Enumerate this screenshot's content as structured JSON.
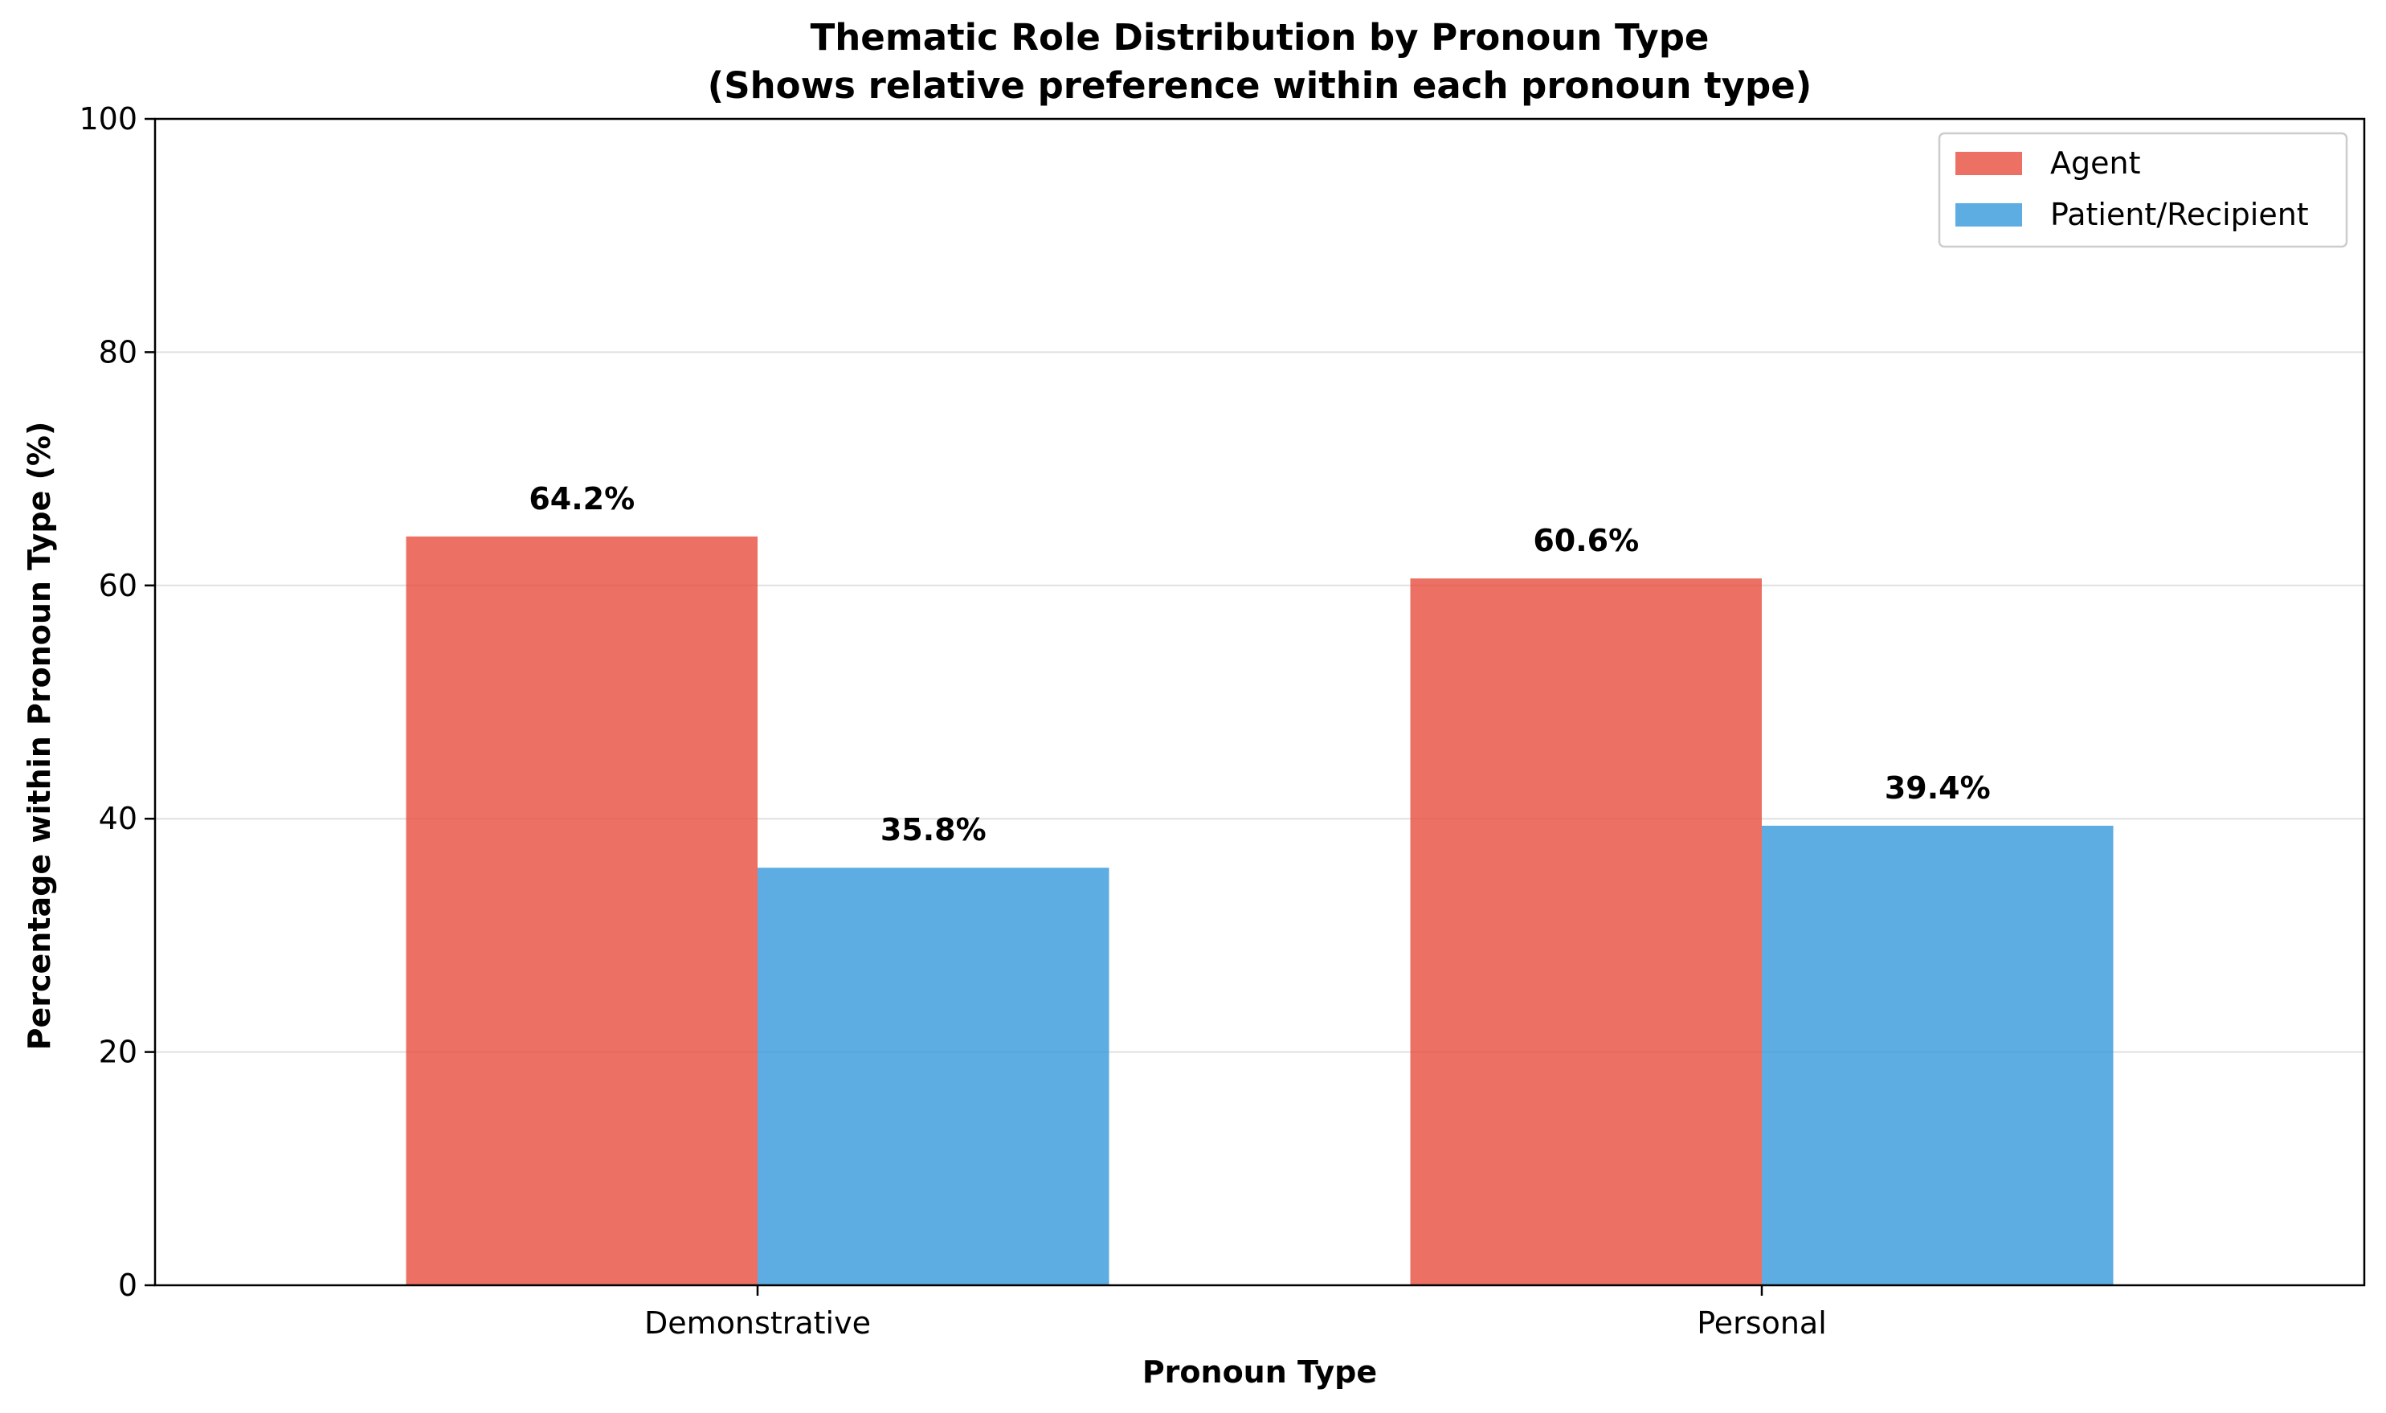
{
  "chart_data": {
    "type": "bar",
    "title": "Thematic Role Distribution by Pronoun Type",
    "subtitle": "(Shows relative preference within each pronoun type)",
    "xlabel": "Pronoun Type",
    "ylabel": "Percentage within Pronoun Type (%)",
    "categories": [
      "Demonstrative",
      "Personal"
    ],
    "series": [
      {
        "name": "Agent",
        "values": [
          64.2,
          60.6
        ],
        "labels": [
          "64.2%",
          "60.6%"
        ],
        "color": "#E74C3C"
      },
      {
        "name": "Patient/Recipient",
        "values": [
          35.8,
          39.4
        ],
        "labels": [
          "35.8%",
          "39.4%"
        ],
        "color": "#3498DB"
      }
    ],
    "ylim": [
      0,
      100
    ],
    "yticks": [
      0,
      20,
      40,
      60,
      80,
      100
    ],
    "ytick_labels": [
      "0",
      "20",
      "40",
      "60",
      "80",
      "100"
    ],
    "grid": "horizontal",
    "legend": "top-right"
  }
}
